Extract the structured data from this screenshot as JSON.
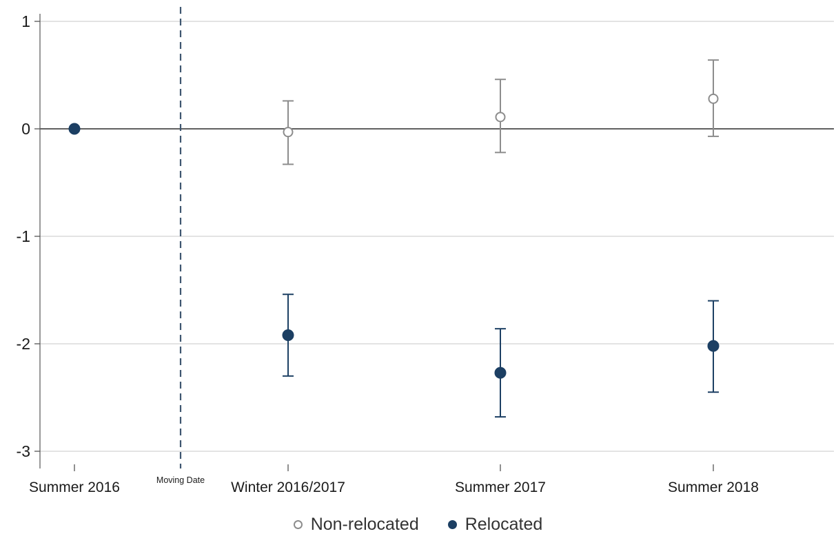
{
  "chart_data": {
    "type": "scatter",
    "x_categories": [
      "Summer 2016",
      "Winter 2016/2017",
      "Summer 2017",
      "Summer 2018"
    ],
    "ylim": [
      -3.2,
      1.1
    ],
    "y_ticks": [
      "1",
      "0",
      "-1",
      "-2",
      "-3"
    ],
    "y_tick_values": [
      1,
      0,
      -1,
      -2,
      -3
    ],
    "grid": true,
    "reference_line_y": 0,
    "event_line": {
      "label": "Moving Date",
      "position": "between Summer 2016 and Winter 2016/2017"
    },
    "legend_position": "bottom",
    "series": [
      {
        "name": "Non-relocated",
        "marker": "open-circle",
        "color": "#8c8c8c",
        "points": [
          {
            "x": "Winter 2016/2017",
            "y": -0.03,
            "ci_low": -0.33,
            "ci_high": 0.26
          },
          {
            "x": "Summer 2017",
            "y": 0.11,
            "ci_low": -0.22,
            "ci_high": 0.46
          },
          {
            "x": "Summer 2018",
            "y": 0.28,
            "ci_low": -0.07,
            "ci_high": 0.64
          }
        ]
      },
      {
        "name": "Relocated",
        "marker": "filled-circle",
        "color": "#1c3f63",
        "points": [
          {
            "x": "Summer 2016",
            "y": 0.0
          },
          {
            "x": "Winter 2016/2017",
            "y": -1.92,
            "ci_low": -2.3,
            "ci_high": -1.54
          },
          {
            "x": "Summer 2017",
            "y": -2.27,
            "ci_low": -2.68,
            "ci_high": -1.86
          },
          {
            "x": "Summer 2018",
            "y": -2.02,
            "ci_low": -2.45,
            "ci_high": -1.6
          }
        ]
      }
    ]
  },
  "legend": {
    "items": [
      {
        "label": "Non-relocated"
      },
      {
        "label": "Relocated"
      }
    ]
  }
}
